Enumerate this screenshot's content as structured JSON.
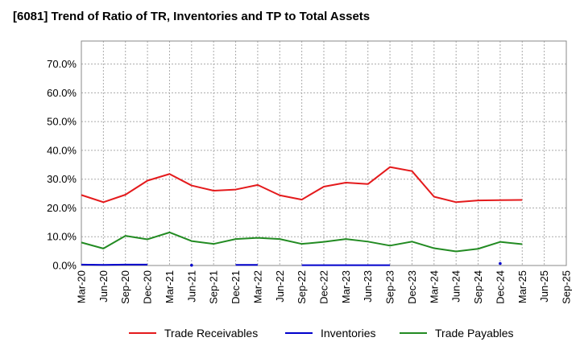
{
  "chart_data": {
    "type": "line",
    "title": "[6081]  Trend of Ratio of TR, Inventories and TP to Total Assets",
    "categories": [
      "Mar-20",
      "Jun-20",
      "Sep-20",
      "Dec-20",
      "Mar-21",
      "Jun-21",
      "Sep-21",
      "Dec-21",
      "Mar-22",
      "Jun-22",
      "Sep-22",
      "Dec-22",
      "Mar-23",
      "Jun-23",
      "Sep-23",
      "Dec-23",
      "Mar-24",
      "Jun-24",
      "Sep-24",
      "Dec-24",
      "Mar-25",
      "Jun-25",
      "Sep-25"
    ],
    "y_ticks": [
      "0.0%",
      "10.0%",
      "20.0%",
      "30.0%",
      "40.0%",
      "50.0%",
      "60.0%",
      "70.0%"
    ],
    "ylim": [
      0,
      78
    ],
    "grid": true,
    "legend_position": "bottom",
    "series": [
      {
        "name": "Trade Receivables",
        "color": "#e41a1c",
        "values": [
          24.5,
          22.0,
          24.6,
          29.5,
          31.8,
          27.8,
          26.0,
          26.4,
          28.0,
          24.4,
          22.9,
          27.4,
          28.8,
          28.3,
          34.2,
          32.8,
          23.9,
          22.0,
          22.6,
          22.7,
          22.8,
          null,
          null
        ]
      },
      {
        "name": "Inventories",
        "color": "#0000cc",
        "values": [
          0.3,
          0.2,
          0.3,
          0.3,
          null,
          0.1,
          null,
          0.2,
          0.2,
          null,
          0.1,
          0.1,
          0.1,
          0.1,
          0.1,
          null,
          null,
          null,
          null,
          0.7,
          null,
          null,
          null
        ]
      },
      {
        "name": "Trade Payables",
        "color": "#228b22",
        "values": [
          8.0,
          5.9,
          10.3,
          9.1,
          11.5,
          8.5,
          7.5,
          9.2,
          9.6,
          9.2,
          7.5,
          8.2,
          9.2,
          8.3,
          6.9,
          8.3,
          6.0,
          4.9,
          5.8,
          8.2,
          7.4,
          null,
          null
        ]
      }
    ]
  }
}
